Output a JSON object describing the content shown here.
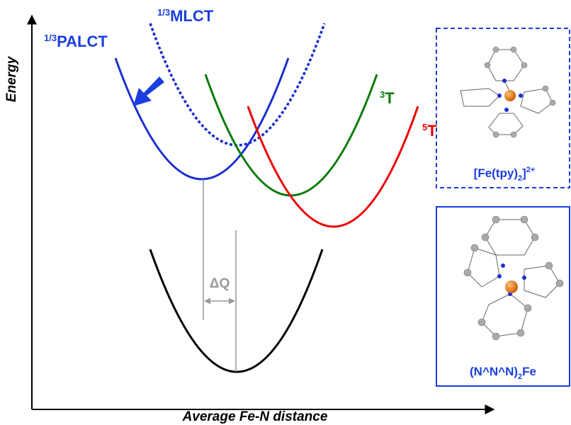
{
  "axes": {
    "y_label": "Energy",
    "x_label": "Average Fe-N distance"
  },
  "curve_labels": {
    "palct": {
      "sup": "1/3",
      "main": "PALCT"
    },
    "mlct": {
      "sup": "1/3",
      "main": "MLCT"
    },
    "triplet": {
      "sup": "3",
      "main": "T"
    },
    "quintet": {
      "sup": "5",
      "main": "T"
    }
  },
  "delta_q": "ΔQ",
  "boxes": [
    {
      "parts": [
        "[Fe(tpy)",
        "2",
        "]",
        "2+"
      ]
    },
    {
      "parts": [
        "(N^N^N)",
        "2",
        "Fe"
      ]
    }
  ]
}
